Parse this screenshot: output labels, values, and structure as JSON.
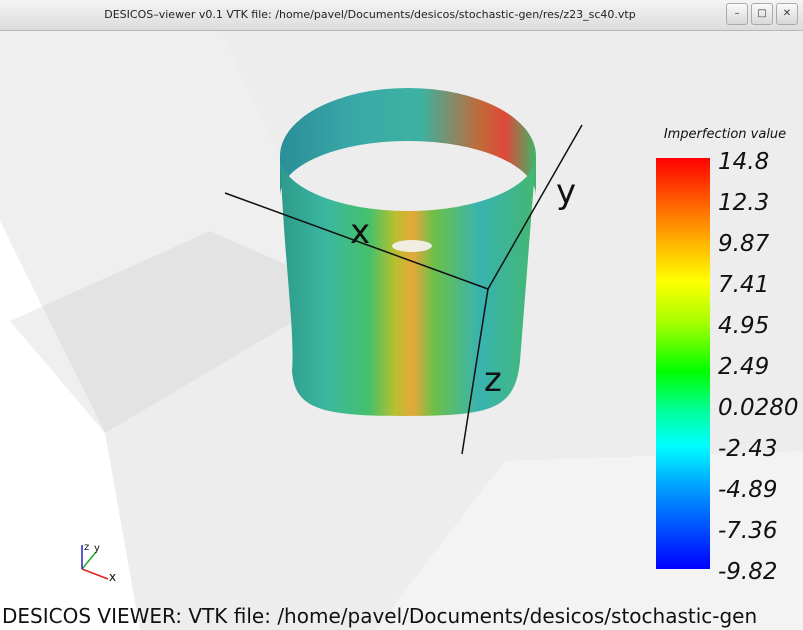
{
  "window": {
    "title": "DESICOS–viewer v0.1 VTK file: /home/pavel/Documents/desicos/stochastic-gen/res/z23_sc40.vtp",
    "buttons": {
      "minimize": "–",
      "maximize": "□",
      "close": "✕"
    }
  },
  "scene": {
    "axis_labels": {
      "x": "x",
      "y": "y",
      "z": "z"
    },
    "orientation_labels": {
      "x": "x",
      "y": "y",
      "z": "z"
    }
  },
  "colorbar": {
    "title": "Imperfection value",
    "ticks": [
      "14.8",
      "12.3",
      "9.87",
      "7.41",
      "4.95",
      "2.49",
      "0.0280",
      "-2.43",
      "-4.89",
      "-7.36",
      "-9.82"
    ]
  },
  "status": {
    "text": "DESICOS VIEWER: VTK file: /home/pavel/Documents/desicos/stochastic-gen"
  },
  "colors": {
    "background": "#ffffff",
    "plane": "#d0d0d0",
    "axis": "#111111"
  }
}
